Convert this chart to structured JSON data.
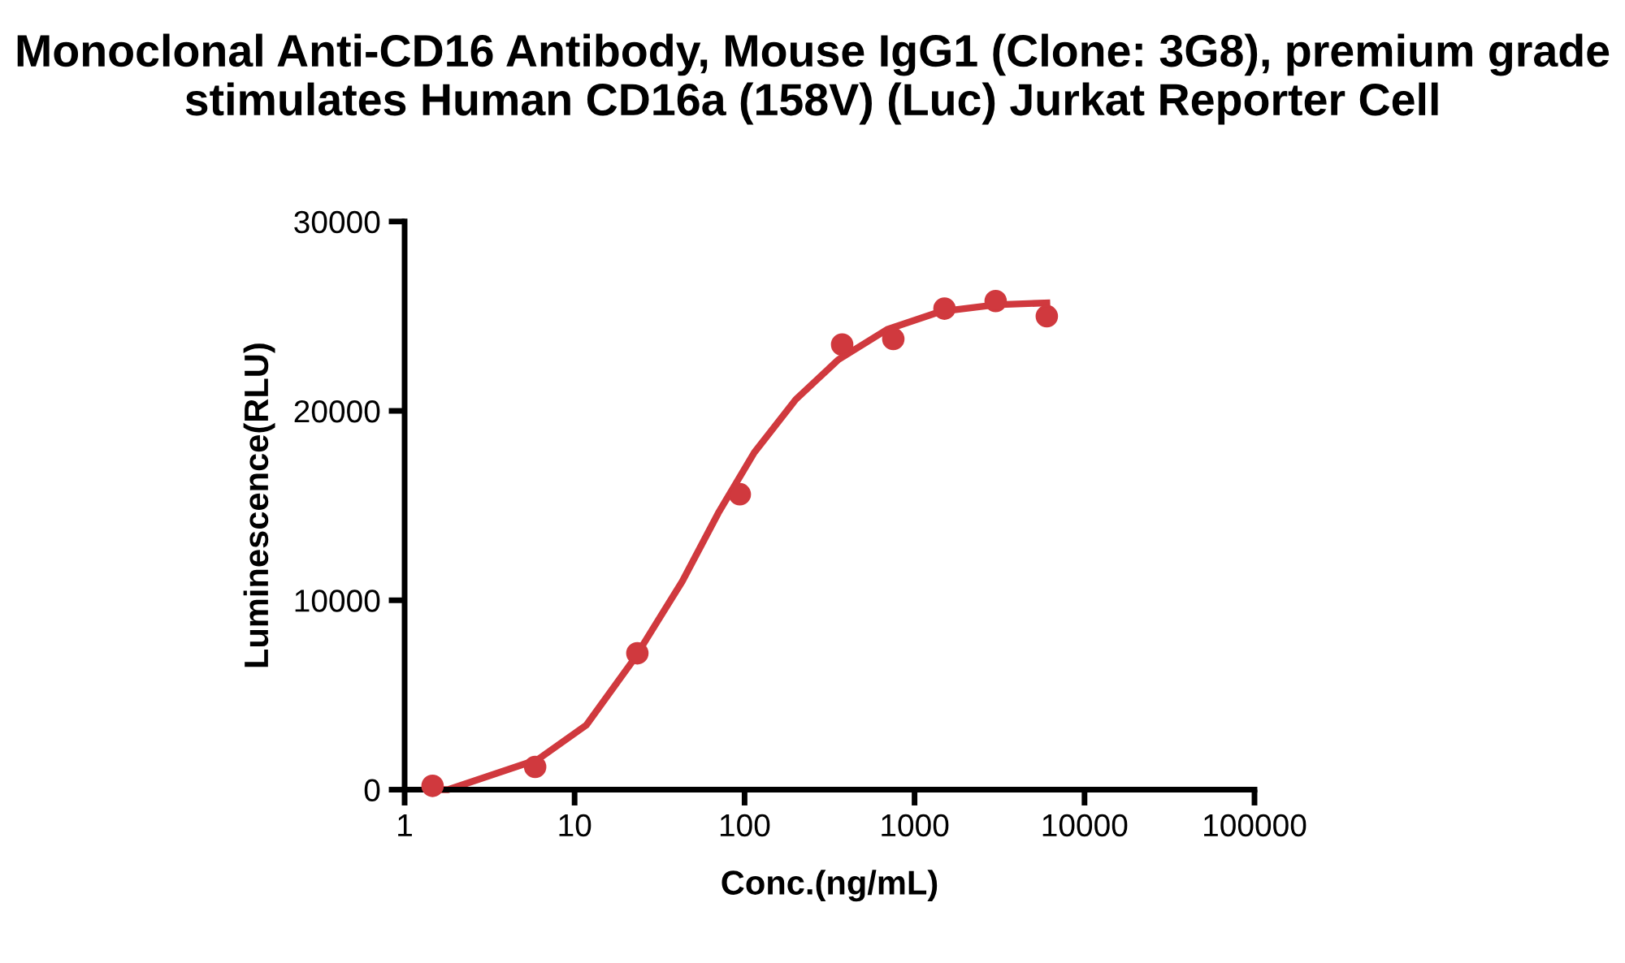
{
  "chart_data": {
    "type": "scatter",
    "title": "Monoclonal Anti-CD16 Antibody, Mouse IgG1 (Clone: 3G8), premium grade stimulates Human CD16a (158V) (Luc) Jurkat Reporter Cell",
    "xlabel": "Conc.(ng/mL)",
    "ylabel": "Luminescence(RLU)",
    "log": "x",
    "grid": false,
    "legend": false,
    "xlim": [
      1,
      100000
    ],
    "xticks": [
      1,
      10,
      100,
      1000,
      10000,
      100000
    ],
    "ylim": [
      0,
      30000
    ],
    "yticks": [
      0,
      10000,
      20000,
      30000
    ],
    "series": [
      {
        "marker": "circle",
        "color": "#d0393e",
        "x": [
          1.46,
          5.86,
          23.4,
          93.75,
          375,
          750,
          1500,
          3000,
          6000
        ],
        "values": [
          200,
          1200,
          7200,
          15600,
          23500,
          23800,
          25400,
          25800,
          25000
        ]
      },
      {
        "type": "line",
        "marker": "none",
        "line_style": "solid",
        "color": "#d0393e",
        "x": [
          1.6,
          1.8,
          6.1,
          11.7,
          22.4,
          43,
          70,
          114,
          200,
          356,
          690,
          1430,
          3000,
          6000
        ],
        "values": [
          0,
          0,
          1600,
          3400,
          6900,
          11000,
          14600,
          17800,
          20600,
          22700,
          24300,
          25250,
          25600,
          25700
        ]
      }
    ]
  }
}
